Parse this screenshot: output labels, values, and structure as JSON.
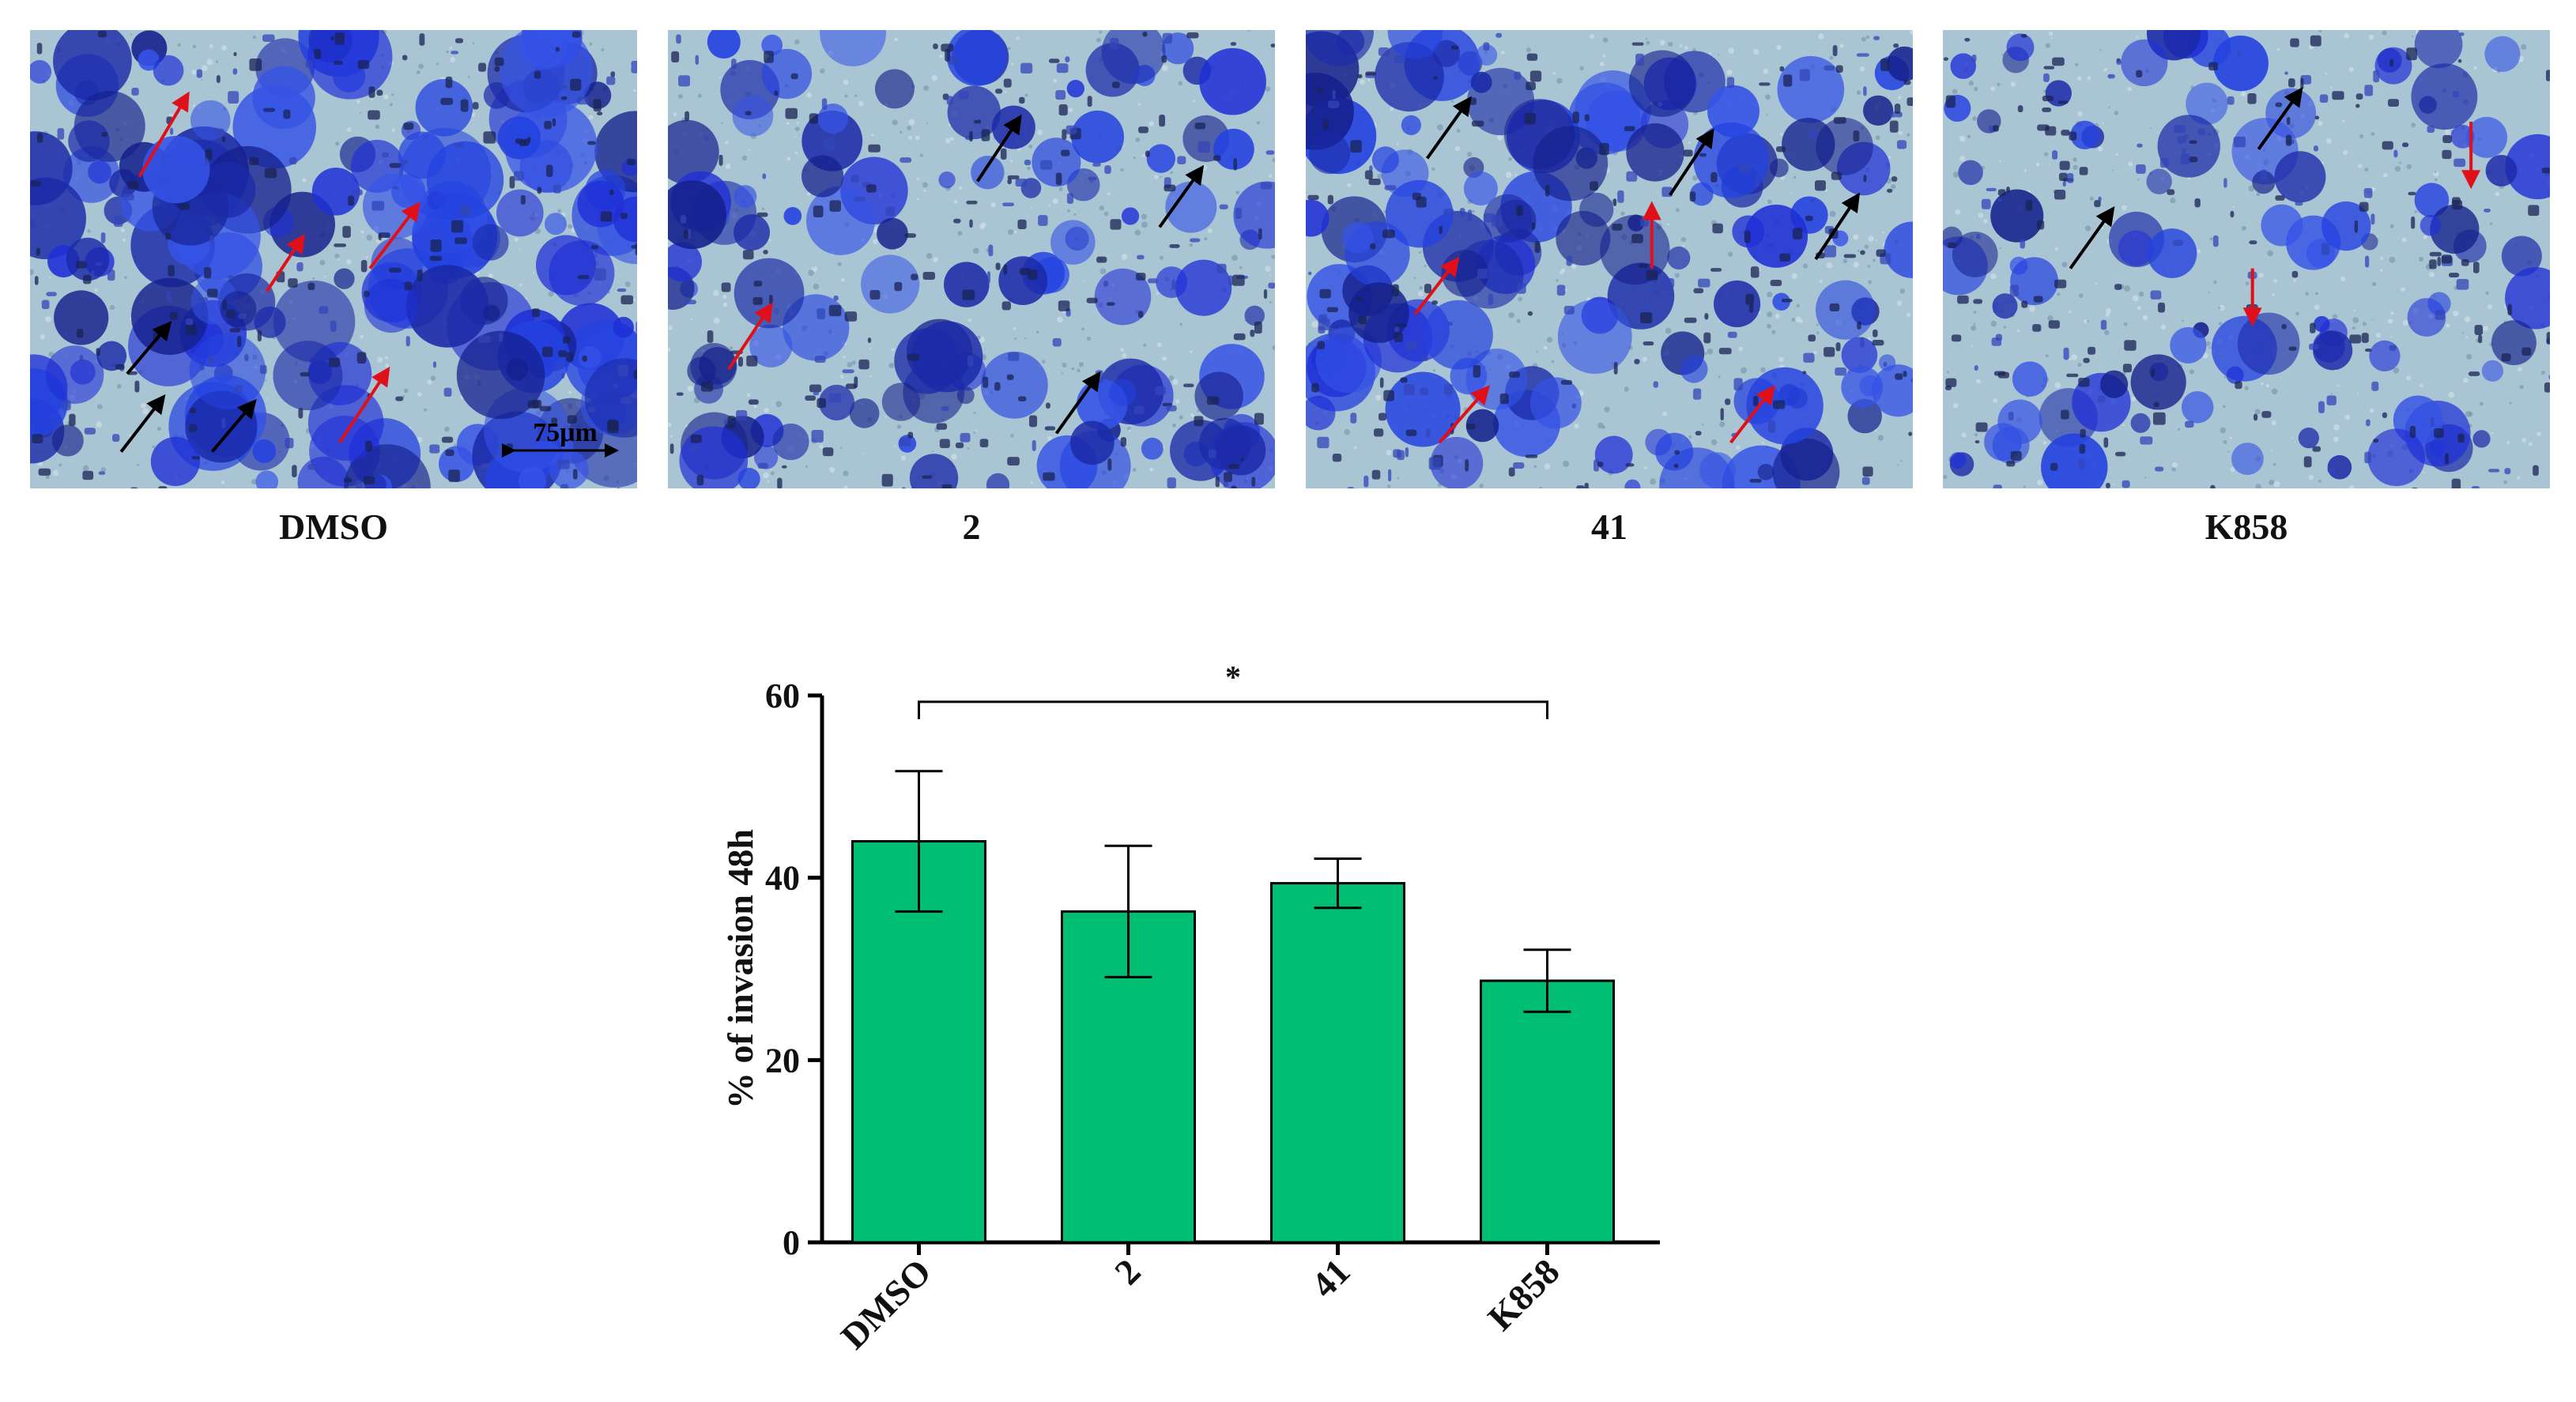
{
  "panels": [
    {
      "label": "DMSO",
      "scale_bar": "75μm",
      "density": 0.8,
      "arrows": {
        "red": [
          [
            0.18,
            0.32,
            0.26,
            0.14
          ],
          [
            0.39,
            0.57,
            0.45,
            0.45
          ],
          [
            0.56,
            0.52,
            0.64,
            0.38
          ],
          [
            0.51,
            0.9,
            0.59,
            0.74
          ]
        ],
        "black": [
          [
            0.16,
            0.75,
            0.23,
            0.64
          ],
          [
            0.15,
            0.92,
            0.22,
            0.8
          ],
          [
            0.3,
            0.92,
            0.37,
            0.81
          ]
        ]
      }
    },
    {
      "label": "2",
      "density": 0.45,
      "arrows": {
        "red": [
          [
            0.1,
            0.74,
            0.17,
            0.6
          ]
        ],
        "black": [
          [
            0.51,
            0.33,
            0.58,
            0.19
          ],
          [
            0.81,
            0.43,
            0.88,
            0.3
          ],
          [
            0.64,
            0.88,
            0.71,
            0.75
          ]
        ]
      }
    },
    {
      "label": "41",
      "density": 0.55,
      "arrows": {
        "red": [
          [
            0.18,
            0.62,
            0.25,
            0.5
          ],
          [
            0.22,
            0.9,
            0.3,
            0.78
          ],
          [
            0.57,
            0.52,
            0.57,
            0.38
          ],
          [
            0.7,
            0.9,
            0.77,
            0.78
          ]
        ],
        "black": [
          [
            0.2,
            0.28,
            0.27,
            0.15
          ],
          [
            0.6,
            0.36,
            0.67,
            0.22
          ],
          [
            0.84,
            0.5,
            0.91,
            0.36
          ]
        ]
      }
    },
    {
      "label": "K858",
      "density": 0.35,
      "arrows": {
        "red": [
          [
            0.87,
            0.2,
            0.87,
            0.34
          ],
          [
            0.51,
            0.52,
            0.51,
            0.64
          ]
        ],
        "black": [
          [
            0.21,
            0.52,
            0.28,
            0.39
          ],
          [
            0.52,
            0.26,
            0.59,
            0.13
          ]
        ]
      }
    }
  ],
  "chart_data": {
    "type": "bar",
    "categories": [
      "DMSO",
      "2",
      "41",
      "K858"
    ],
    "values": [
      44,
      36.3,
      39.4,
      28.7
    ],
    "errors": [
      7.7,
      7.2,
      2.7,
      3.4
    ],
    "ylabel": "% of invasion 48h",
    "ylim": [
      0,
      60
    ],
    "yticks": [
      0,
      20,
      40,
      60
    ],
    "bar_color": "#00bf72",
    "significance": {
      "from": "DMSO",
      "to": "K858",
      "label": "*"
    }
  }
}
